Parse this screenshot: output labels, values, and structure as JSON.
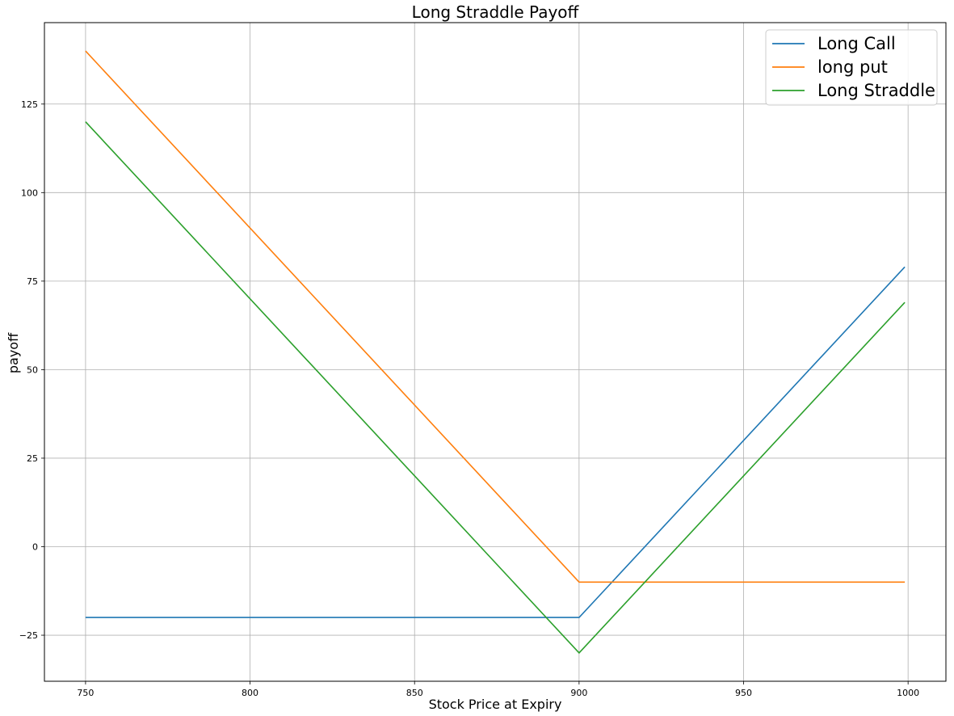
{
  "chart_data": {
    "type": "line",
    "title": "Long Straddle Payoff",
    "xlabel": "Stock Price at Expiry",
    "ylabel": "payoff",
    "xlim": [
      737.5,
      1011.5
    ],
    "ylim": [
      -38,
      148
    ],
    "xticks": [
      750,
      800,
      850,
      900,
      950,
      1000
    ],
    "yticks": [
      -25,
      0,
      25,
      50,
      75,
      100,
      125
    ],
    "grid": true,
    "legend_position": "top-right",
    "series": [
      {
        "name": "Long Call",
        "color": "#1f77b4",
        "x": [
          750,
          900,
          999
        ],
        "y": [
          -20,
          -20,
          79
        ]
      },
      {
        "name": "long put",
        "color": "#ff7f0e",
        "x": [
          750,
          900,
          999
        ],
        "y": [
          140,
          -10,
          -10
        ]
      },
      {
        "name": "Long Straddle",
        "color": "#2ca02c",
        "x": [
          750,
          900,
          999
        ],
        "y": [
          120,
          -30,
          69
        ]
      }
    ]
  }
}
